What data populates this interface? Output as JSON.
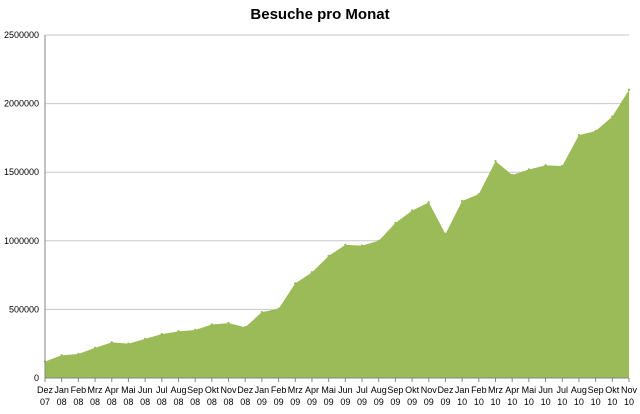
{
  "chart_data": {
    "type": "area",
    "title": "Besuche pro Monat",
    "xlabel": "",
    "ylabel": "",
    "ylim": [
      0,
      2500000
    ],
    "yticks": [
      0,
      500000,
      1000000,
      1500000,
      2000000,
      2500000
    ],
    "ytick_labels": [
      "0",
      "500000",
      "1000000",
      "1500000",
      "2000000",
      "2500000"
    ],
    "grid": "horizontal",
    "legend": "none",
    "fill_color": "#9BBB59",
    "categories": [
      [
        "Dez",
        "07"
      ],
      [
        "Jan",
        "08"
      ],
      [
        "Feb",
        "08"
      ],
      [
        "Mrz",
        "08"
      ],
      [
        "Apr",
        "08"
      ],
      [
        "Mai",
        "08"
      ],
      [
        "Jun",
        "08"
      ],
      [
        "Jul",
        "08"
      ],
      [
        "Aug",
        "08"
      ],
      [
        "Sep",
        "08"
      ],
      [
        "Okt",
        "08"
      ],
      [
        "Nov",
        "08"
      ],
      [
        "Dez",
        "08"
      ],
      [
        "Jan",
        "09"
      ],
      [
        "Feb",
        "09"
      ],
      [
        "Mrz",
        "09"
      ],
      [
        "Apr",
        "09"
      ],
      [
        "Mai",
        "09"
      ],
      [
        "Jun",
        "09"
      ],
      [
        "Jul",
        "09"
      ],
      [
        "Aug",
        "09"
      ],
      [
        "Sep",
        "09"
      ],
      [
        "Okt",
        "09"
      ],
      [
        "Nov",
        "09"
      ],
      [
        "Dez",
        "09"
      ],
      [
        "Jan",
        "10"
      ],
      [
        "Feb",
        "10"
      ],
      [
        "Mrz",
        "10"
      ],
      [
        "Apr",
        "10"
      ],
      [
        "Mai",
        "10"
      ],
      [
        "Jun",
        "10"
      ],
      [
        "Jul",
        "10"
      ],
      [
        "Aug",
        "10"
      ],
      [
        "Sep",
        "10"
      ],
      [
        "Okt",
        "10"
      ],
      [
        "Nov",
        "10"
      ]
    ],
    "series": [
      {
        "values": [
          120000,
          165000,
          175000,
          220000,
          260000,
          250000,
          285000,
          320000,
          340000,
          350000,
          390000,
          400000,
          370000,
          480000,
          505000,
          690000,
          770000,
          890000,
          970000,
          965000,
          1000000,
          1130000,
          1220000,
          1280000,
          1050000,
          1290000,
          1340000,
          1580000,
          1480000,
          1520000,
          1550000,
          1545000,
          1770000,
          1800000,
          1905000,
          2100000
        ]
      }
    ]
  }
}
